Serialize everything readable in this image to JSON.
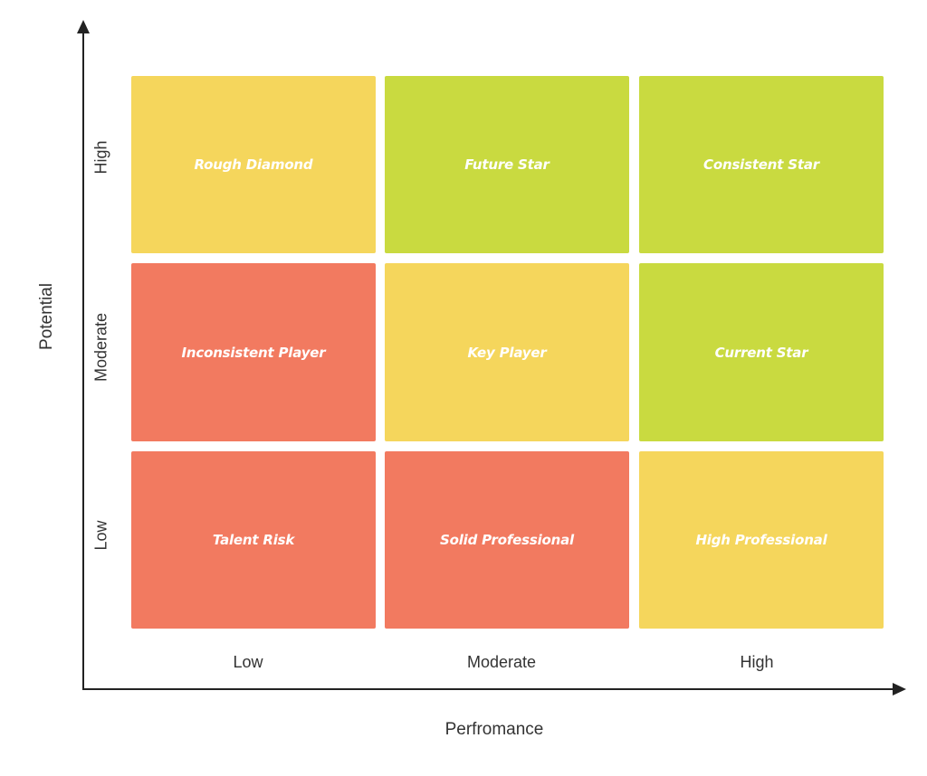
{
  "colors": {
    "red": "#F27A60",
    "yellow": "#F5D65C",
    "green": "#C9DA40",
    "axis": "#222222",
    "text": "#333333"
  },
  "axes": {
    "x_title": "Perfromance",
    "y_title": "Potential",
    "x_ticks": [
      "Low",
      "Moderate",
      "High"
    ],
    "y_ticks": [
      "High",
      "Moderate",
      "Low"
    ]
  },
  "grid": {
    "rows": [
      {
        "potential": "High",
        "cells": [
          {
            "label": "Rough Diamond",
            "color": "yellow"
          },
          {
            "label": "Future Star",
            "color": "green"
          },
          {
            "label": "Consistent Star",
            "color": "green"
          }
        ]
      },
      {
        "potential": "Moderate",
        "cells": [
          {
            "label": "Inconsistent Player",
            "color": "red"
          },
          {
            "label": "Key Player",
            "color": "yellow"
          },
          {
            "label": "Current Star",
            "color": "green"
          }
        ]
      },
      {
        "potential": "Low",
        "cells": [
          {
            "label": "Talent Risk",
            "color": "red"
          },
          {
            "label": "Solid Professional",
            "color": "red"
          },
          {
            "label": "High Professional",
            "color": "yellow"
          }
        ]
      }
    ]
  }
}
